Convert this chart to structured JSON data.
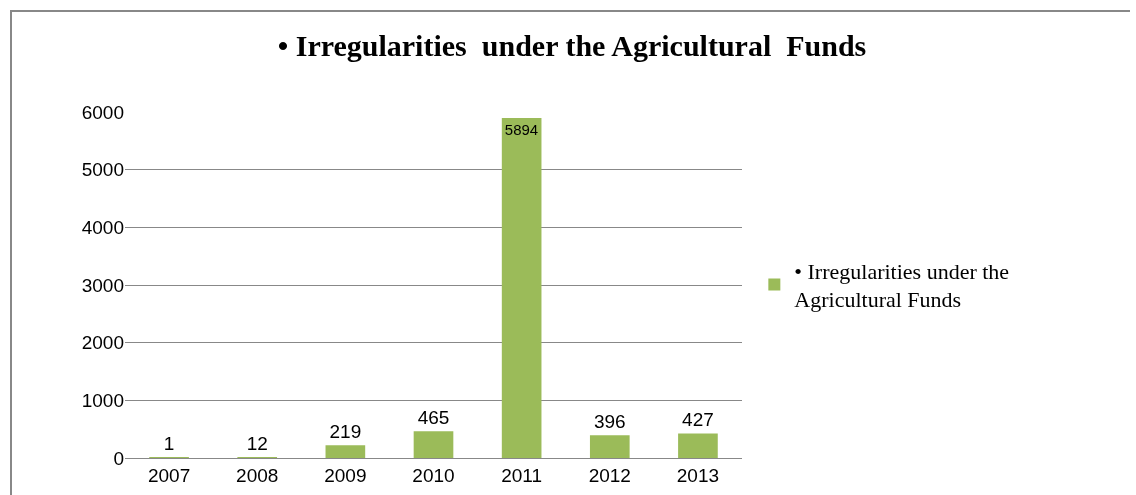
{
  "chart_data": {
    "type": "bar",
    "title": "• Irregularities  under the Agricultural  Funds",
    "categories": [
      "2007",
      "2008",
      "2009",
      "2010",
      "2011",
      "2012",
      "2013"
    ],
    "series": [
      {
        "name": "• Irregularities under the Agricultural Funds",
        "color": "#9bbb59",
        "values": [
          1,
          12,
          219,
          465,
          5894,
          396,
          427
        ]
      }
    ],
    "ylim": [
      0,
      6000
    ],
    "yticks": [
      0,
      1000,
      2000,
      3000,
      4000,
      5000,
      6000
    ],
    "grid": "y",
    "legend": "right",
    "data_labels": true
  }
}
